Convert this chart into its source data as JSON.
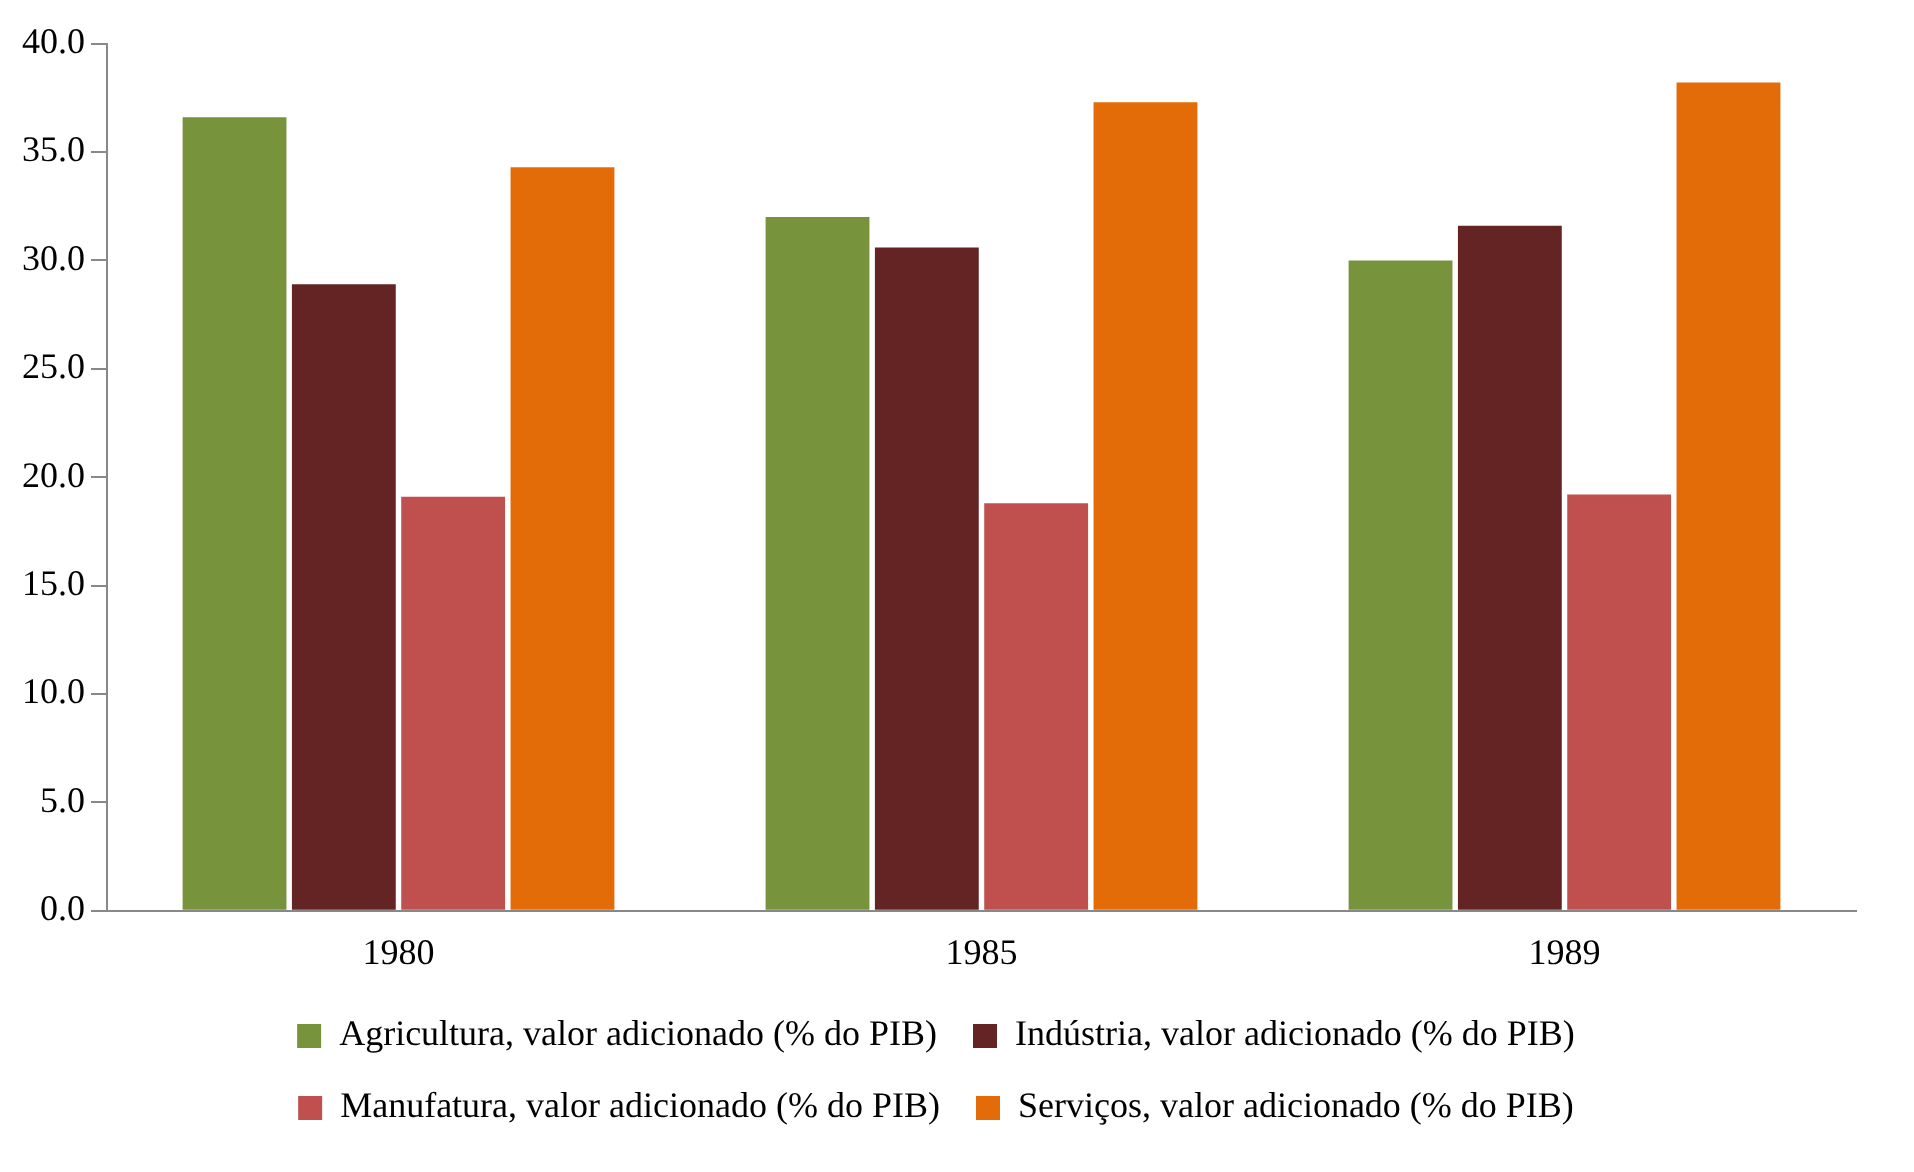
{
  "chart_data": {
    "type": "bar",
    "categories": [
      "1980",
      "1985",
      "1989"
    ],
    "series": [
      {
        "name": "Agricultura, valor adicionado (% do PIB)",
        "color": "#77933c",
        "values": [
          36.6,
          32.0,
          30.0
        ]
      },
      {
        "name": "Indústria, valor adicionado (% do PIB)",
        "color": "#632423",
        "values": [
          28.9,
          30.6,
          31.6
        ]
      },
      {
        "name": "Manufatura, valor adicionado (% do PIB)",
        "color": "#c0504d",
        "values": [
          19.1,
          18.8,
          19.2
        ]
      },
      {
        "name": "Serviços, valor adicionado (% do PIB)",
        "color": "#e36c09",
        "values": [
          34.3,
          37.3,
          38.2
        ]
      }
    ],
    "ylim": [
      0,
      40
    ],
    "yticks": [
      {
        "value": 0,
        "label": "0.0"
      },
      {
        "value": 5,
        "label": "5.0"
      },
      {
        "value": 10,
        "label": "10.0"
      },
      {
        "value": 15,
        "label": "15.0"
      },
      {
        "value": 20,
        "label": "20.0"
      },
      {
        "value": 25,
        "label": "25.0"
      },
      {
        "value": 30,
        "label": "30.0"
      },
      {
        "value": 35,
        "label": "35.0"
      },
      {
        "value": 40,
        "label": "40.0"
      }
    ],
    "grid": false,
    "legend": "bottom"
  }
}
